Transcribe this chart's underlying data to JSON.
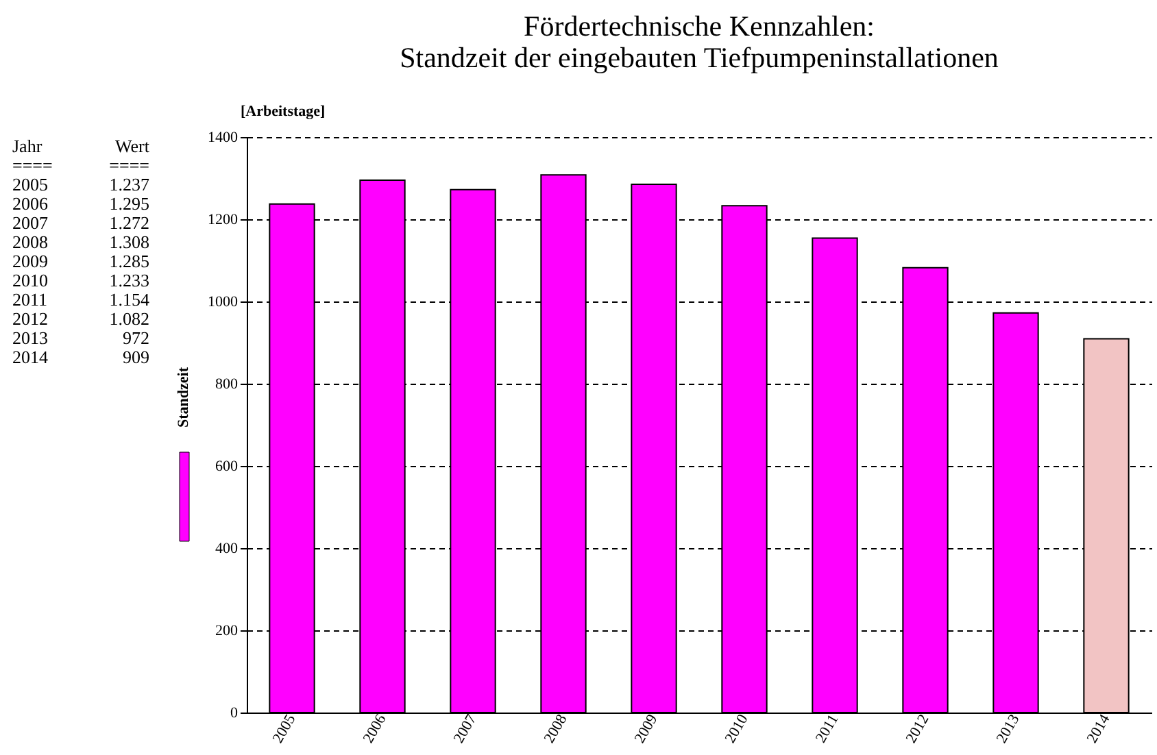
{
  "chart_data": {
    "type": "bar",
    "title": "Fördertechnische Kennzahlen:\nStandzeit der eingebauten Tiefpumpeninstallationen",
    "ylabel": "[Arbeitstage]",
    "categories": [
      "2005",
      "2006",
      "2007",
      "2008",
      "2009",
      "2010",
      "2011",
      "2012",
      "2013",
      "2014"
    ],
    "series": [
      {
        "name": "Standzeit",
        "color": "#ff00ff",
        "colors": [
          "#ff00ff",
          "#ff00ff",
          "#ff00ff",
          "#ff00ff",
          "#ff00ff",
          "#ff00ff",
          "#ff00ff",
          "#ff00ff",
          "#ff00ff",
          "#f2c4c4"
        ],
        "values": [
          1237,
          1295,
          1272,
          1308,
          1285,
          1233,
          1154,
          1082,
          972,
          909
        ]
      }
    ],
    "annotations": [
      "Jahr",
      "Wert",
      "====",
      "====",
      "1.237",
      "1.295",
      "1.272",
      "1.308",
      "1.285",
      "1.233",
      "1.154",
      "1.082",
      "972",
      "909"
    ],
    "ylim": [
      0,
      1400
    ],
    "yticks": [
      0,
      200,
      400,
      600,
      800,
      1000,
      1200,
      1400
    ],
    "grid": "y",
    "legend": "left"
  }
}
